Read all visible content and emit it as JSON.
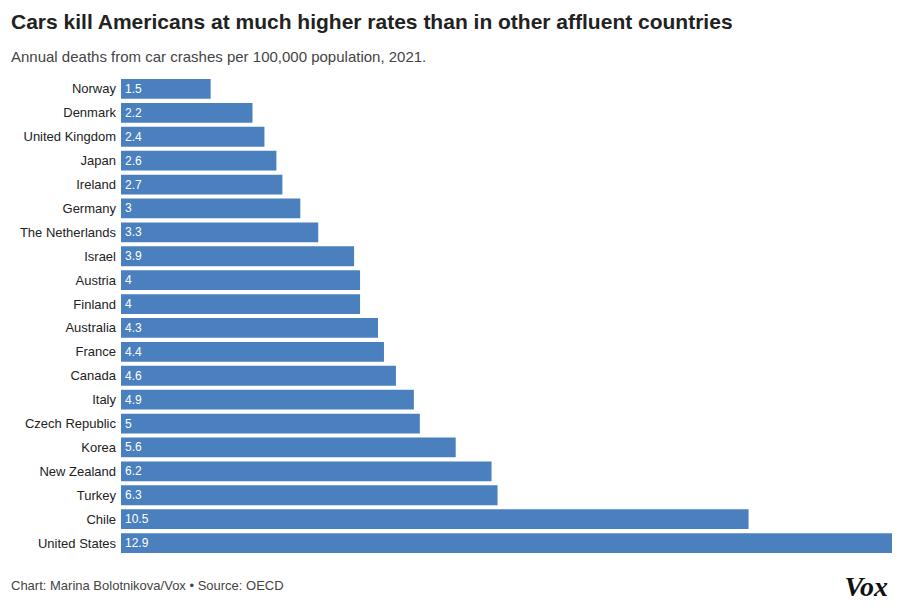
{
  "chart_data": {
    "type": "bar",
    "orientation": "horizontal",
    "title": "Cars kill Americans at much higher rates than in other affluent countries",
    "subtitle": "Annual deaths from car crashes per 100,000 population, 2021.",
    "footer": "Chart: Marina Bolotnikova/Vox • Source: OECD",
    "logo": "Vox",
    "categories": [
      "Norway",
      "Denmark",
      "United Kingdom",
      "Japan",
      "Ireland",
      "Germany",
      "The Netherlands",
      "Israel",
      "Austria",
      "Finland",
      "Australia",
      "France",
      "Canada",
      "Italy",
      "Czech Republic",
      "Korea",
      "New Zealand",
      "Turkey",
      "Chile",
      "United States"
    ],
    "values": [
      1.5,
      2.2,
      2.4,
      2.6,
      2.7,
      3,
      3.3,
      3.9,
      4,
      4,
      4.3,
      4.4,
      4.6,
      4.9,
      5,
      5.6,
      6.2,
      6.3,
      10.5,
      12.9
    ],
    "color": "#4a80bd",
    "xlim": [
      0,
      12.9
    ],
    "grid": false,
    "data_labels": true,
    "tick_labels": "y"
  }
}
